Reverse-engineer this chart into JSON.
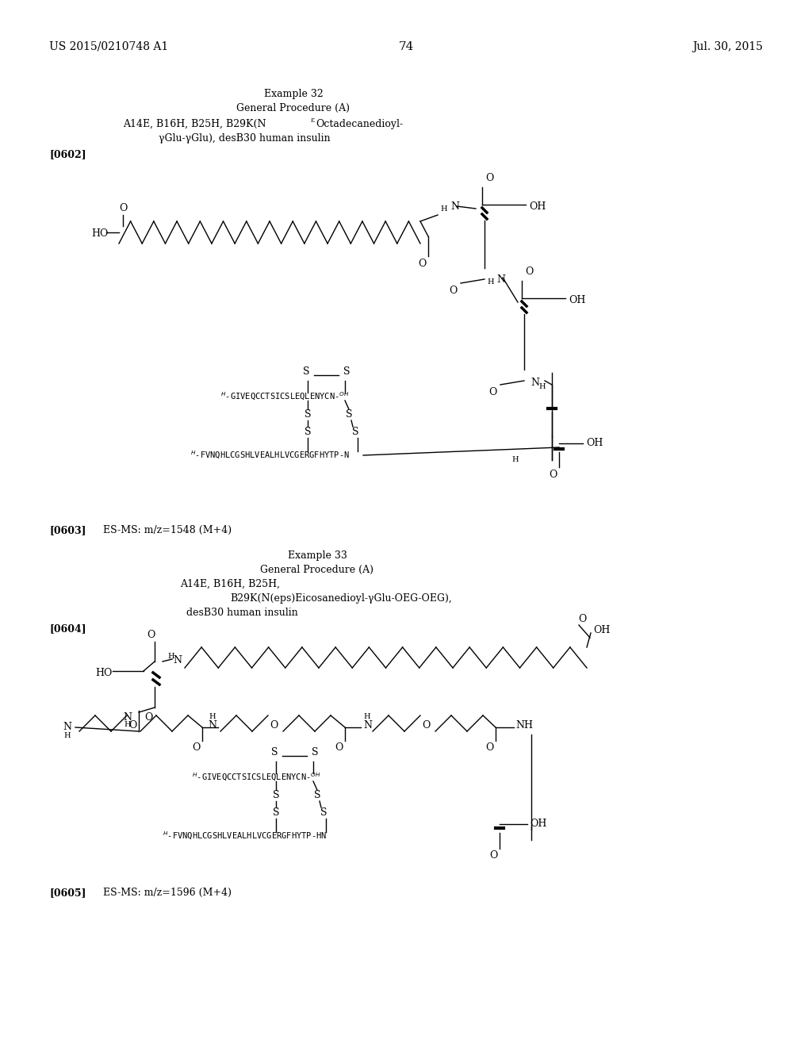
{
  "page_number": "74",
  "patent_left": "US 2015/0210748 A1",
  "patent_right": "Jul. 30, 2015",
  "bg_color": "#ffffff",
  "text_color": "#000000",
  "ref0602": "[0602]",
  "ref0603": "[0603]",
  "ms_data1": "ES-MS: m/z=1548 (M+4)",
  "example33_title": "Example 33",
  "example33_proc": "General Procedure (A)",
  "ref0604": "[0604]",
  "ref0605": "[0605]",
  "ms_data2": "ES-MS: m/z=1596 (M+4)"
}
